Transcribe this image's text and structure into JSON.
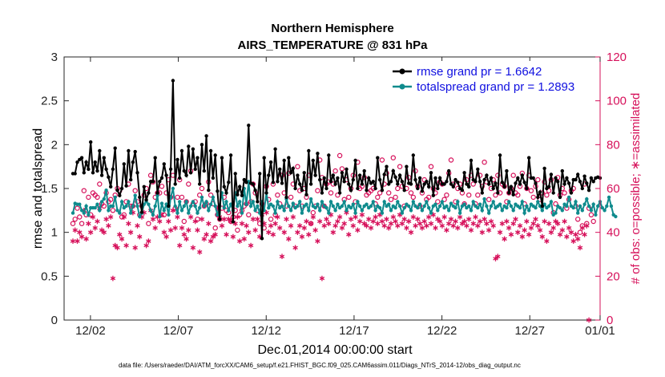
{
  "chart_data": {
    "type": "line",
    "title": "Northern Hemisphere",
    "subtitle": "AIRS_TEMPERATURE @ 831 hPa",
    "xlabel": "Dec.01,2014 00:00:00 start",
    "ylabel": "rmse and totalspread",
    "y2label": "# of obs: o=possible; ∗=assimilated",
    "xlim": [
      0.5,
      31.0
    ],
    "ylim": [
      0,
      3
    ],
    "y2lim": [
      0,
      120
    ],
    "x_ticks": [
      {
        "v": 2,
        "label": "12/02"
      },
      {
        "v": 7,
        "label": "12/07"
      },
      {
        "v": 12,
        "label": "12/12"
      },
      {
        "v": 17,
        "label": "12/17"
      },
      {
        "v": 22,
        "label": "12/22"
      },
      {
        "v": 27,
        "label": "12/27"
      },
      {
        "v": 31,
        "label": "01/01"
      }
    ],
    "y_ticks": [
      "0",
      "0.5",
      "1",
      "1.5",
      "2",
      "2.5",
      "3"
    ],
    "y2_ticks": [
      "0",
      "20",
      "40",
      "60",
      "80",
      "100",
      "120"
    ],
    "colors": {
      "rmse": "#000000",
      "spread": "#0f8b8d",
      "obs": "#d6105a",
      "legend_text": "#1010e0"
    },
    "series": [
      {
        "name": "rmse grand pr = 1.6642",
        "key": "rmse",
        "values": [
          1.67,
          1.67,
          1.8,
          1.83,
          1.85,
          1.68,
          1.8,
          1.72,
          2.03,
          1.68,
          1.8,
          1.7,
          1.93,
          1.65,
          1.85,
          1.72,
          1.63,
          1.52,
          1.72,
          1.96,
          1.48,
          1.42,
          1.5,
          1.78,
          1.53,
          1.93,
          1.6,
          1.8,
          1.92,
          1.68,
          1.4,
          1.23,
          1.52,
          1.37,
          1.45,
          1.58,
          1.58,
          1.85,
          1.45,
          1.58,
          1.62,
          1.78,
          1.65,
          1.3,
          1.72,
          2.73,
          1.55,
          1.83,
          1.62,
          1.93,
          1.7,
          1.65,
          1.98,
          1.68,
          1.95,
          1.72,
          1.85,
          1.55,
          2.0,
          1.7,
          2.1,
          1.48,
          1.93,
          1.62,
          1.88,
          1.47,
          1.15,
          1.85,
          1.52,
          1.45,
          1.57,
          1.88,
          1.12,
          1.67,
          1.43,
          1.52,
          1.42,
          1.6,
          1.57,
          2.22,
          1.56,
          1.55,
          1.48,
          1.35,
          1.67,
          0.93,
          1.85,
          1.45,
          1.65,
          1.8,
          1.57,
          1.95,
          1.58,
          1.72,
          1.56,
          1.82,
          1.4,
          1.85,
          1.68,
          1.73,
          1.5,
          1.65,
          1.55,
          1.48,
          1.68,
          1.43,
          1.93,
          1.55,
          1.82,
          1.65,
          1.9,
          1.6,
          1.45,
          1.62,
          1.5,
          1.88,
          1.58,
          1.65,
          1.55,
          1.62,
          1.45,
          1.68,
          1.58,
          1.72,
          1.55,
          1.48,
          1.6,
          1.82,
          1.5,
          1.65,
          1.55,
          1.7,
          1.48,
          1.62,
          1.56,
          1.58,
          1.5,
          1.85,
          1.6,
          1.48,
          1.66,
          1.75,
          1.55,
          1.58,
          1.7,
          1.63,
          1.55,
          1.65,
          1.58,
          1.48,
          1.75,
          1.56,
          1.55,
          1.88,
          1.6,
          1.5,
          1.62,
          1.47,
          1.55,
          1.58,
          1.52,
          1.68,
          1.42,
          1.62,
          1.5,
          1.62,
          1.55,
          1.55,
          1.58,
          1.7,
          1.55,
          1.52,
          1.6,
          1.57,
          1.5,
          1.48,
          1.68,
          1.55,
          1.52,
          1.82,
          1.6,
          1.58,
          1.72,
          1.58,
          1.45,
          1.6,
          1.65,
          1.55,
          1.62,
          1.5,
          1.56,
          1.45,
          1.88,
          1.57,
          1.52,
          1.7,
          1.45,
          1.52,
          1.43,
          1.56,
          1.62,
          1.55,
          1.65,
          1.57,
          1.5,
          1.85,
          1.62,
          1.62,
          1.56,
          1.4,
          1.46,
          1.3,
          1.73,
          1.5,
          1.52,
          1.66,
          1.45,
          1.62,
          1.58,
          1.4,
          1.7,
          1.55,
          1.62,
          1.56,
          1.45,
          1.6,
          1.6,
          1.66,
          1.58,
          1.5,
          1.64,
          1.56,
          1.48,
          1.62,
          1.58,
          1.62,
          1.63,
          1.62
        ]
      },
      {
        "name": "totalspread grand pr = 1.2893",
        "key": "spread",
        "values": [
          1.22,
          1.33,
          1.32,
          1.32,
          1.25,
          1.22,
          1.3,
          1.2,
          1.28,
          1.28,
          1.28,
          1.32,
          1.25,
          1.35,
          1.38,
          1.48,
          1.25,
          1.3,
          1.3,
          1.4,
          1.25,
          1.22,
          1.35,
          1.28,
          1.3,
          1.35,
          1.22,
          1.3,
          1.42,
          1.3,
          1.18,
          1.22,
          1.32,
          1.35,
          1.32,
          1.25,
          1.2,
          1.3,
          1.42,
          1.18,
          1.33,
          1.25,
          1.32,
          1.2,
          1.4,
          1.5,
          1.3,
          1.22,
          1.35,
          1.25,
          1.3,
          1.35,
          1.22,
          1.3,
          1.35,
          1.3,
          1.22,
          1.28,
          1.4,
          1.3,
          1.35,
          1.25,
          1.32,
          1.4,
          1.3,
          1.2,
          1.3,
          1.45,
          1.28,
          1.35,
          1.25,
          1.32,
          1.25,
          1.45,
          1.3,
          1.35,
          1.22,
          1.5,
          1.32,
          1.58,
          1.3,
          1.35,
          1.25,
          1.3,
          1.22,
          1.35,
          1.25,
          1.45,
          1.28,
          1.32,
          1.3,
          1.22,
          1.35,
          1.28,
          1.3,
          1.25,
          1.38,
          1.3,
          1.25,
          1.33,
          1.28,
          1.3,
          1.35,
          1.22,
          1.3,
          1.32,
          1.25,
          1.38,
          1.3,
          1.28,
          1.32,
          1.25,
          1.35,
          1.3,
          1.28,
          1.22,
          1.35,
          1.3,
          1.25,
          1.32,
          1.28,
          1.3,
          1.35,
          1.25,
          1.3,
          1.28,
          1.32,
          1.22,
          1.35,
          1.3,
          1.25,
          1.3,
          1.32,
          1.28,
          1.3,
          1.35,
          1.25,
          1.3,
          1.28,
          1.22,
          1.35,
          1.3,
          1.32,
          1.25,
          1.3,
          1.28,
          1.35,
          1.3,
          1.22,
          1.28,
          1.32,
          1.3,
          1.25,
          1.35,
          1.3,
          1.28,
          1.32,
          1.25,
          1.3,
          1.35,
          1.28,
          1.22,
          1.3,
          1.32,
          1.25,
          1.3,
          1.35,
          1.28,
          1.3,
          1.25,
          1.33,
          1.3,
          1.28,
          1.35,
          1.22,
          1.3,
          1.32,
          1.28,
          1.3,
          1.25,
          1.35,
          1.3,
          1.28,
          1.32,
          1.25,
          1.38,
          1.3,
          1.22,
          1.3,
          1.35,
          1.28,
          1.3,
          1.32,
          1.25,
          1.3,
          1.28,
          1.35,
          1.3,
          1.25,
          1.32,
          1.3,
          1.28,
          1.35,
          1.22,
          1.3,
          1.25,
          1.32,
          1.3,
          1.28,
          1.35,
          1.3,
          1.25,
          1.32,
          1.28,
          1.3,
          1.35,
          1.2,
          1.22,
          1.3,
          1.28,
          1.25,
          1.32,
          1.3,
          1.4,
          1.3,
          1.28,
          1.35,
          1.22,
          1.3,
          1.25,
          1.32,
          1.38,
          1.3,
          1.25,
          1.32,
          1.2,
          1.3,
          1.35,
          1.28,
          1.25,
          1.3,
          1.4,
          1.3,
          1.2,
          1.18
        ]
      },
      {
        "name": "possible",
        "key": "possible",
        "values": [
          44,
          46,
          51,
          47,
          44,
          59,
          48,
          56,
          48,
          58,
          57,
          56,
          62,
          53,
          52,
          58,
          54,
          55,
          50,
          57,
          60,
          59,
          47,
          48,
          54,
          62,
          52,
          52,
          59,
          54,
          48,
          52,
          57,
          60,
          44,
          66,
          63,
          56,
          58,
          58,
          61,
          48,
          58,
          64,
          56,
          66,
          51,
          56,
          64,
          56,
          45,
          54,
          62,
          68,
          53,
          54,
          46,
          57,
          60,
          52,
          53,
          63,
          57,
          53,
          42,
          48,
          46,
          51,
          56,
          50,
          49,
          45,
          47,
          50,
          41,
          48,
          50,
          52,
          53,
          48,
          54,
          62,
          58,
          50,
          44,
          53,
          42,
          61,
          55,
          46,
          62,
          48,
          57,
          53,
          66,
          58,
          52,
          67,
          56,
          62,
          52,
          70,
          59,
          52,
          60,
          56,
          66,
          44,
          49,
          52,
          59,
          73,
          65,
          52,
          62,
          63,
          58,
          62,
          68,
          57,
          75,
          69,
          55,
          64,
          56,
          60,
          66,
          54,
          72,
          60,
          61,
          65,
          57,
          58,
          59,
          60,
          53,
          56,
          58,
          73,
          62,
          67,
          58,
          55,
          74,
          56,
          60,
          70,
          61,
          52,
          60,
          65,
          58,
          56,
          68,
          61,
          52,
          58,
          64,
          55,
          56,
          70,
          60,
          58,
          54,
          63,
          62,
          55,
          57,
          67,
          73,
          62,
          54,
          60,
          62,
          58,
          53,
          64,
          57,
          66,
          62,
          53,
          57,
          66,
          61,
          72,
          63,
          55,
          60,
          64,
          57,
          66,
          58,
          62,
          61,
          54,
          58,
          60,
          66,
          58,
          57,
          61,
          67,
          53,
          60,
          66,
          59,
          56,
          61,
          64,
          55,
          58,
          63,
          57,
          59,
          64,
          49,
          53,
          65,
          57,
          60,
          58,
          51,
          55,
          59,
          60,
          52,
          46,
          40,
          43,
          62,
          44,
          51,
          48,
          45
        ]
      },
      {
        "name": "assimilated",
        "key": "assimilated",
        "values": [
          36,
          41,
          36,
          40,
          38,
          50,
          37,
          44,
          40,
          47,
          42,
          45,
          51,
          41,
          40,
          46,
          43,
          47,
          19,
          34,
          33,
          39,
          37,
          47,
          34,
          44,
          40,
          49,
          33,
          43,
          38,
          47,
          49,
          34,
          36,
          50,
          46,
          42,
          47,
          45,
          48,
          40,
          38,
          45,
          41,
          50,
          42,
          47,
          34,
          42,
          39,
          37,
          41,
          47,
          33,
          45,
          41,
          31,
          46,
          37,
          39,
          44,
          36,
          38,
          39,
          51,
          47,
          43,
          46,
          39,
          46,
          45,
          38,
          44,
          47,
          36,
          44,
          37,
          43,
          40,
          34,
          46,
          41,
          46,
          38,
          48,
          44,
          49,
          40,
          43,
          39,
          44,
          47,
          42,
          29,
          40,
          46,
          37,
          43,
          47,
          33,
          40,
          43,
          38,
          42,
          45,
          39,
          44,
          47,
          41,
          36,
          45,
          19,
          43,
          46,
          44,
          48,
          40,
          43,
          45,
          47,
          42,
          44,
          49,
          39,
          46,
          43,
          47,
          41,
          45,
          48,
          44,
          43,
          46,
          42,
          45,
          47,
          44,
          48,
          45,
          43,
          46,
          42,
          44,
          47,
          45,
          43,
          48,
          44,
          46,
          42,
          45,
          40,
          47,
          43,
          46,
          44,
          42,
          45,
          43,
          47,
          44,
          48,
          42,
          46,
          45,
          43,
          47,
          41,
          44,
          46,
          43,
          45,
          42,
          47,
          44,
          45,
          43,
          46,
          41,
          44,
          47,
          43,
          45,
          40,
          46,
          44,
          41,
          45,
          43,
          28,
          29,
          40,
          44,
          37,
          45,
          42,
          39,
          44,
          46,
          40,
          43,
          38,
          41,
          45,
          39,
          42,
          44,
          46,
          43,
          41,
          38,
          45,
          36,
          44,
          40,
          42,
          45,
          44,
          39,
          41,
          45,
          38,
          42,
          40,
          36,
          39,
          37,
          33,
          42,
          39,
          43,
          0
        ]
      }
    ]
  },
  "legend": {
    "rmse_label": "rmse grand pr = 1.6642",
    "spread_label": "totalspread grand pr = 1.2893"
  },
  "footer": "data file: /Users/raeder/DAI/ATM_forcXX/CAM6_setup/f.e21.FHIST_BGC.f09_025.CAM6assim.011/Diags_NTrS_2014-12/obs_diag_output.nc"
}
